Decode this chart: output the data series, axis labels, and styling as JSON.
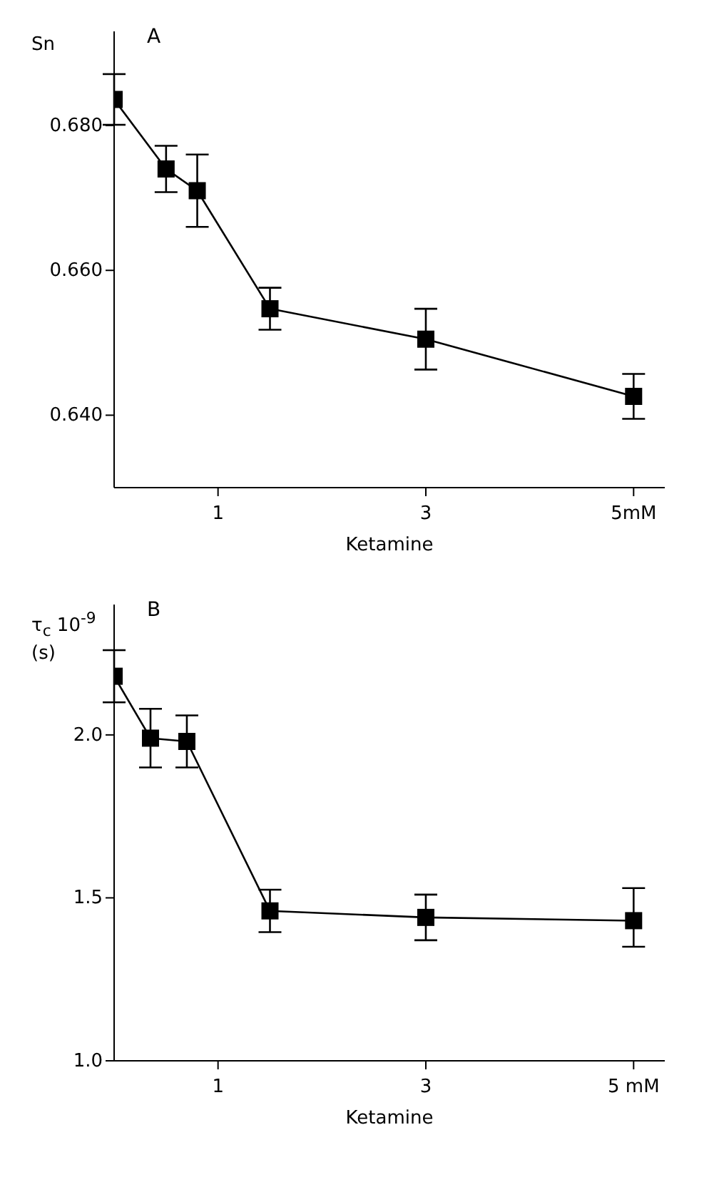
{
  "chart_data": [
    {
      "type": "line",
      "title": "A",
      "xlabel": "Ketamine",
      "ylabel": "Sn",
      "x": [
        0,
        0.5,
        0.8,
        1.5,
        3,
        5
      ],
      "series": [
        {
          "color": "#000000",
          "values": [
            0.6836,
            0.674,
            0.671,
            0.6547,
            0.6505,
            0.6426
          ],
          "errors": [
            0.0035,
            0.0032,
            0.005,
            0.0029,
            0.0042,
            0.0031
          ]
        }
      ],
      "xlim": [
        0,
        5.3
      ],
      "xticks": [
        {
          "value": 1,
          "label": "1"
        },
        {
          "value": 3,
          "label": "3"
        },
        {
          "value": 5,
          "label": "5mM"
        }
      ],
      "ylim": [
        0.63,
        0.693
      ],
      "yticks": [
        {
          "value": 0.64,
          "label": "0.640"
        },
        {
          "value": 0.66,
          "label": "0.660"
        },
        {
          "value": 0.68,
          "label": "0.680"
        }
      ],
      "grid": false,
      "legend": false,
      "marker": "square",
      "line_style": "solid"
    },
    {
      "type": "line",
      "title": "B",
      "xlabel": "Ketamine",
      "ylabel": "τ$_{c}$ 10$^{-9}$ (s)",
      "x": [
        0,
        0.35,
        0.7,
        1.5,
        3,
        5
      ],
      "series": [
        {
          "color": "#000000",
          "values": [
            2.18,
            1.99,
            1.98,
            1.46,
            1.44,
            1.43
          ],
          "errors": [
            0.08,
            0.09,
            0.08,
            0.065,
            0.07,
            [
              1.35,
              1.53
            ]
          ]
        }
      ],
      "xlim": [
        0,
        5.3
      ],
      "xticks": [
        {
          "value": 1,
          "label": "1"
        },
        {
          "value": 3,
          "label": "3"
        },
        {
          "value": 5,
          "label": "5 mM"
        }
      ],
      "ylim": [
        1.0,
        2.4
      ],
      "yticks": [
        {
          "value": 1,
          "label": "1.0"
        },
        {
          "value": 1.5,
          "label": "1.5"
        },
        {
          "value": 2,
          "label": "2.0"
        }
      ],
      "grid": false,
      "legend": false,
      "marker": "square",
      "line_style": "solid"
    }
  ]
}
